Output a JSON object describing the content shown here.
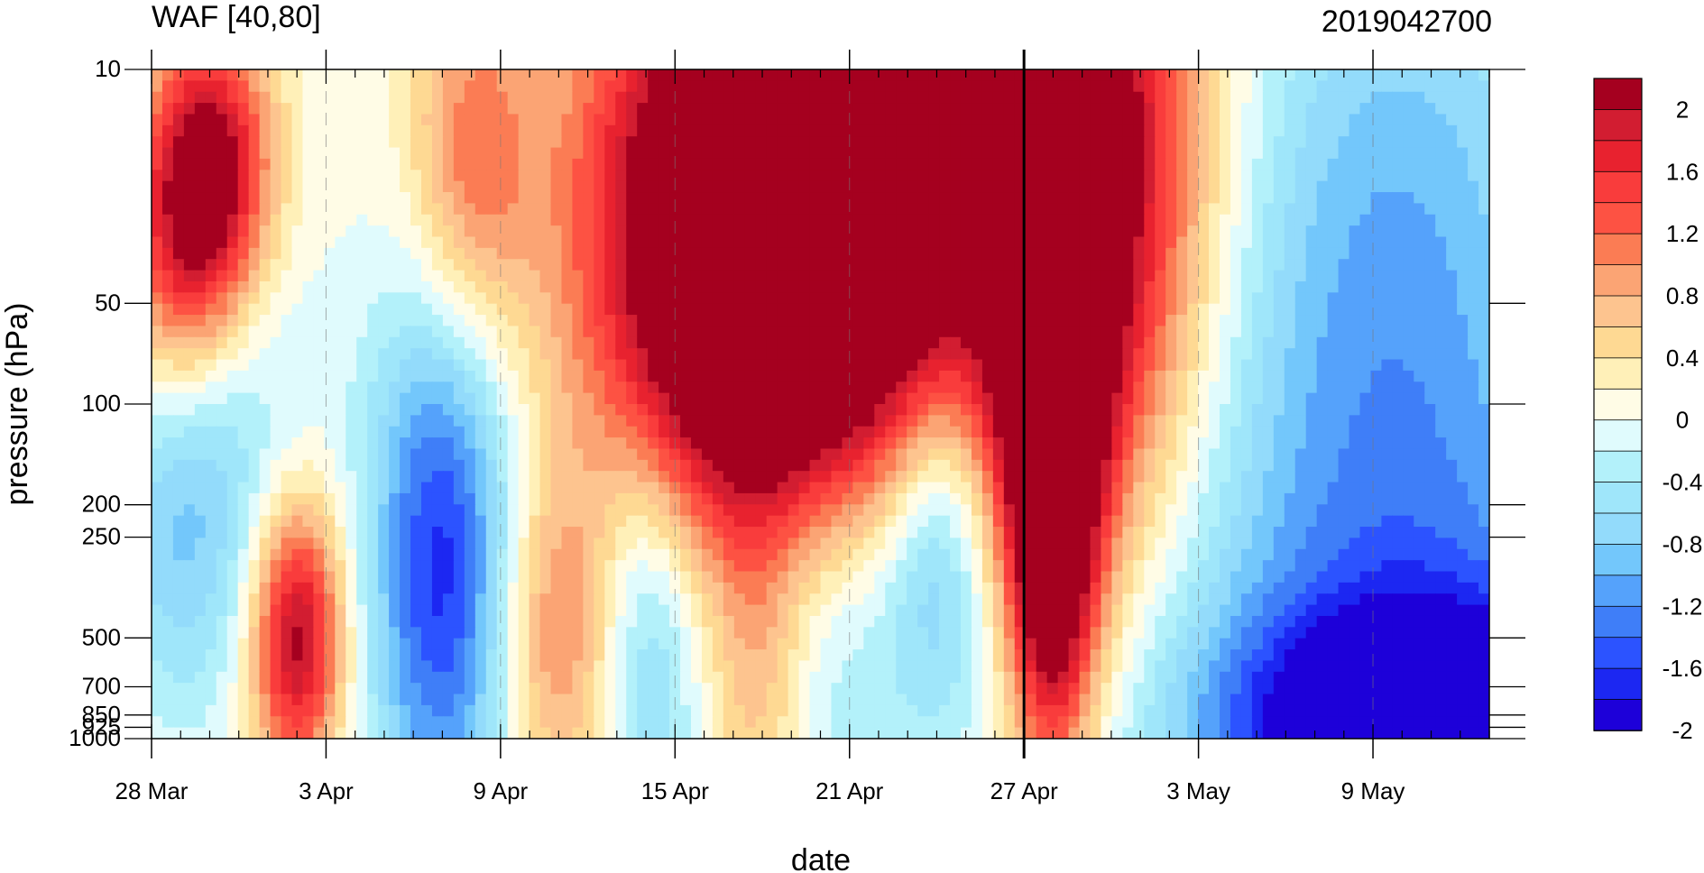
{
  "chart_data": {
    "type": "heatmap",
    "title": "WAF [40,80]",
    "subtitle": "2019042700",
    "xlabel": "date",
    "ylabel": "pressure (hPa)",
    "x_ticks": [
      "28 Mar",
      "3 Apr",
      "9 Apr",
      "15 Apr",
      "21 Apr",
      "27 Apr",
      "3 May",
      "9 May"
    ],
    "y_ticks": [
      "10",
      "50",
      "100",
      "200",
      "250",
      "500",
      "700",
      "850",
      "925",
      "1000"
    ],
    "y_scale": "log",
    "ylim": [
      1000,
      10
    ],
    "x_range": [
      "28 Mar",
      "13 May"
    ],
    "marked_date": "27 Apr",
    "grid": "dashed vertical lines at date ticks",
    "colorbar": {
      "labels": [
        "2",
        "1.6",
        "1.2",
        "0.8",
        "0.4",
        "0",
        "-0.4",
        "-0.8",
        "-1.2",
        "-1.6",
        "-2"
      ],
      "levels": [
        -2,
        -1.8,
        -1.6,
        -1.4,
        -1.2,
        -1.0,
        -0.8,
        -0.6,
        -0.4,
        -0.2,
        0,
        0.2,
        0.4,
        0.6,
        0.8,
        1.0,
        1.2,
        1.4,
        1.6,
        1.8,
        2
      ],
      "colors_low_to_high": [
        "#1d00d9",
        "#1c27f2",
        "#2c53ff",
        "#3f7ef8",
        "#55a2fb",
        "#73c7fb",
        "#93dbfb",
        "#9fe6fa",
        "#b3f1fa",
        "#e0fbfd",
        "#fffce6",
        "#fff0b8",
        "#fed993",
        "#fdc48f",
        "#fba474",
        "#fb7c54",
        "#fd5243",
        "#f93c3c",
        "#e8222f",
        "#d21d31",
        "#a5001f"
      ]
    },
    "anomalies": [
      {
        "day": 2,
        "p": 20,
        "v": 2.2,
        "wx": 1.5,
        "wy": 0.3
      },
      {
        "day": 1,
        "p": 40,
        "v": 1.0,
        "wx": 1.5,
        "wy": 0.3
      },
      {
        "day": 11,
        "p": 20,
        "v": 1.1,
        "wx": 1.5,
        "wy": 0.4
      },
      {
        "day": 18,
        "p": 30,
        "v": 0.9,
        "wx": 3.0,
        "wy": 0.6
      },
      {
        "day": 23,
        "p": 18,
        "v": 3.0,
        "wx": 4.5,
        "wy": 0.55
      },
      {
        "day": 22,
        "p": 80,
        "v": 2.0,
        "wx": 3.5,
        "wy": 0.4
      },
      {
        "day": 32,
        "p": 22,
        "v": 2.6,
        "wx": 3.0,
        "wy": 0.8
      },
      {
        "day": 31,
        "p": 100,
        "v": 2.6,
        "wx": 1.2,
        "wy": 0.5
      },
      {
        "day": 31,
        "p": 500,
        "v": 1.2,
        "wx": 1.0,
        "wy": 0.35
      },
      {
        "day": 5,
        "p": 500,
        "v": 2.1,
        "wx": 1.1,
        "wy": 0.28
      },
      {
        "day": 14,
        "p": 500,
        "v": 1.0,
        "wx": 1.6,
        "wy": 0.35
      },
      {
        "day": 21,
        "p": 700,
        "v": 0.7,
        "wx": 1.3,
        "wy": 0.4
      },
      {
        "day": 3,
        "p": 80,
        "v": -0.4,
        "wx": 2.0,
        "wy": 0.5
      },
      {
        "day": 1,
        "p": 250,
        "v": -0.8,
        "wx": 1.8,
        "wy": 0.4
      },
      {
        "day": 10,
        "p": 300,
        "v": -1.8,
        "wx": 1.8,
        "wy": 0.6
      },
      {
        "day": 17,
        "p": 500,
        "v": -0.9,
        "wx": 1.4,
        "wy": 0.45
      },
      {
        "day": 23,
        "p": 300,
        "v": -0.6,
        "wx": 1.8,
        "wy": 0.7
      },
      {
        "day": 27,
        "p": 250,
        "v": -1.1,
        "wx": 1.4,
        "wy": 0.4
      },
      {
        "day": 39,
        "p": 150,
        "v": -0.5,
        "wx": 8.0,
        "wy": 0.9
      },
      {
        "day": 44,
        "p": 950,
        "v": -2.2,
        "wx": 5.0,
        "wy": 0.25
      },
      {
        "day": 44,
        "p": 500,
        "v": -0.7,
        "wx": 6.0,
        "wy": 0.5
      },
      {
        "day": 43,
        "p": 30,
        "v": -0.8,
        "wx": 4.0,
        "wy": 0.8
      }
    ]
  }
}
